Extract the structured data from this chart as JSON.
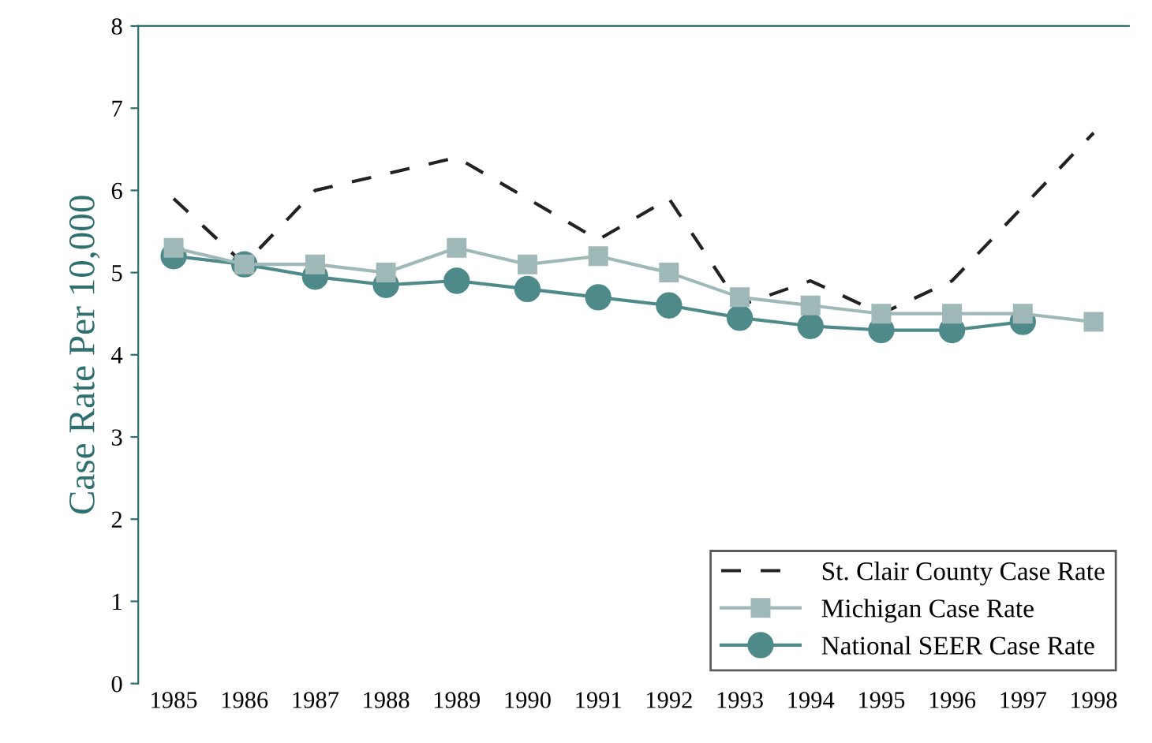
{
  "chart_data": {
    "type": "line",
    "ylabel": "Case Rate Per 10,000",
    "categories": [
      "1985",
      "1986",
      "1987",
      "1988",
      "1989",
      "1990",
      "1991",
      "1992",
      "1993",
      "1994",
      "1995",
      "1996",
      "1997",
      "1998"
    ],
    "ylim": [
      0,
      8
    ],
    "yticks": [
      0,
      1,
      2,
      3,
      4,
      5,
      6,
      7,
      8
    ],
    "grid": false,
    "legend": "bottom right",
    "series": [
      {
        "name": "St. Clair County Case Rate",
        "color": "#222222",
        "line_style": "dashed",
        "marker": "none",
        "values": [
          5.9,
          5.1,
          6.0,
          6.2,
          6.4,
          5.9,
          5.4,
          5.9,
          4.6,
          4.9,
          4.5,
          4.9,
          5.8,
          6.7
        ]
      },
      {
        "name": "Michigan Case Rate",
        "color": "#9fb8b8",
        "line_style": "solid",
        "marker": "square",
        "values": [
          5.3,
          5.1,
          5.1,
          5.0,
          5.3,
          5.1,
          5.2,
          5.0,
          4.7,
          4.6,
          4.5,
          4.5,
          4.5,
          4.4
        ]
      },
      {
        "name": "National SEER Case Rate",
        "color": "#4f8a8a",
        "line_style": "solid",
        "marker": "circle",
        "values": [
          5.2,
          5.1,
          4.95,
          4.85,
          4.9,
          4.8,
          4.7,
          4.6,
          4.45,
          4.35,
          4.3,
          4.3,
          4.4,
          null
        ]
      }
    ]
  }
}
